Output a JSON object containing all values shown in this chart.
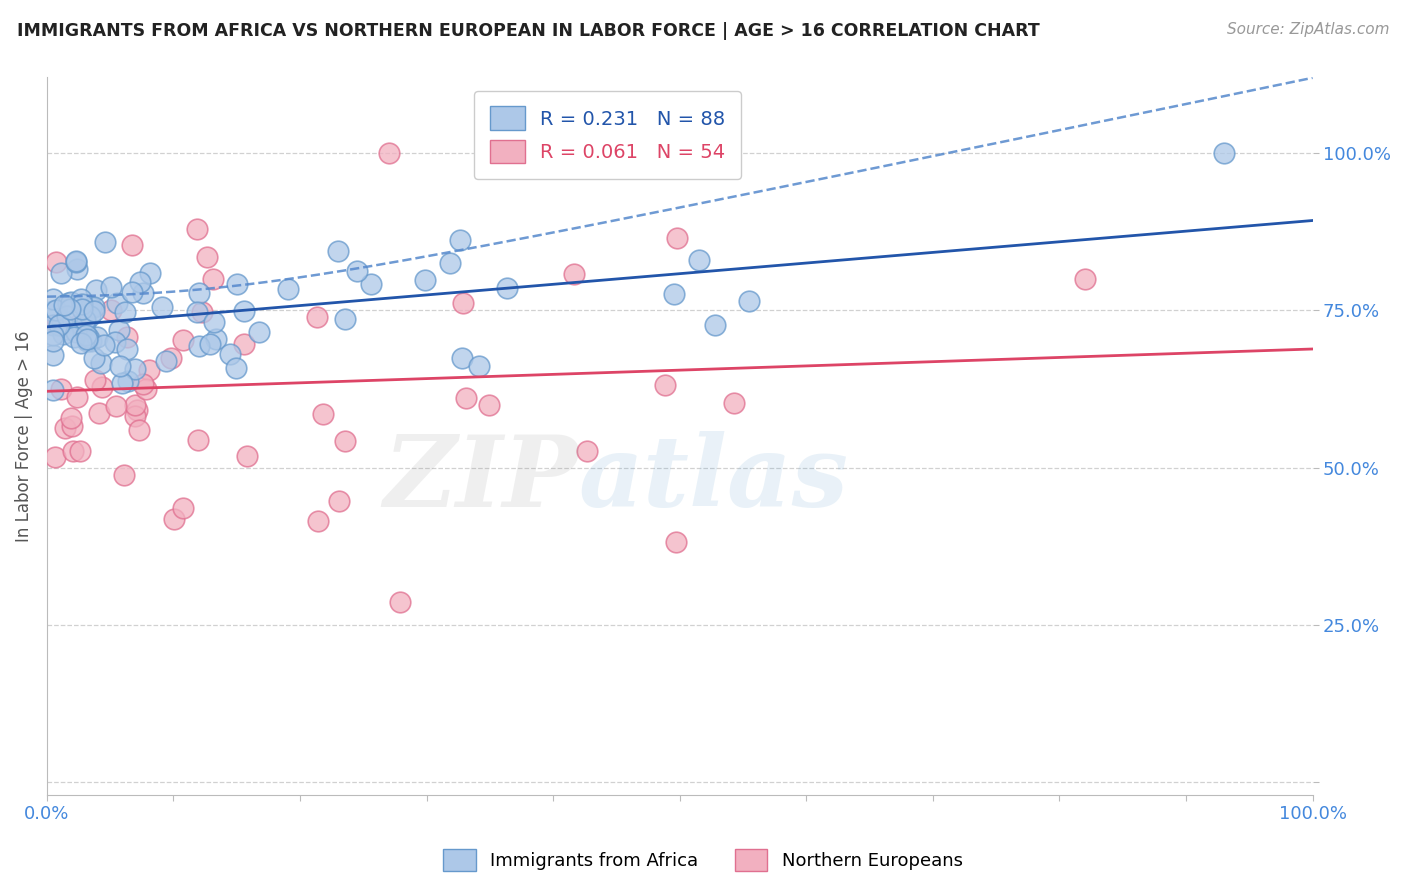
{
  "title": "IMMIGRANTS FROM AFRICA VS NORTHERN EUROPEAN IN LABOR FORCE | AGE > 16 CORRELATION CHART",
  "source": "Source: ZipAtlas.com",
  "ylabel": "In Labor Force | Age > 16",
  "xlim": [
    0.0,
    1.0
  ],
  "ylim": [
    -0.02,
    1.12
  ],
  "yticks": [
    0.0,
    0.25,
    0.5,
    0.75,
    1.0
  ],
  "ytick_labels": [
    "",
    "25.0%",
    "50.0%",
    "75.0%",
    "100.0%"
  ],
  "xtick_positions": [
    0.0,
    0.1,
    0.2,
    0.3,
    0.4,
    0.5,
    0.6,
    0.7,
    0.8,
    0.9,
    1.0
  ],
  "xtick_labels": [
    "0.0%",
    "",
    "",
    "",
    "",
    "",
    "",
    "",
    "",
    "",
    "100.0%"
  ],
  "legend_label1": "Immigrants from Africa",
  "legend_label2": "Northern Europeans",
  "R1": "0.231",
  "N1": "88",
  "R2": "0.061",
  "N2": "54",
  "blue_color": "#adc8e8",
  "blue_edge": "#6699cc",
  "pink_color": "#f2b0c0",
  "pink_edge": "#e07090",
  "blue_line_color": "#2255aa",
  "pink_line_color": "#dd4466",
  "ci_color": "#5588cc",
  "watermark_zip": "ZIP",
  "watermark_atlas": "atlas",
  "background_color": "#ffffff",
  "grid_color": "#cccccc"
}
